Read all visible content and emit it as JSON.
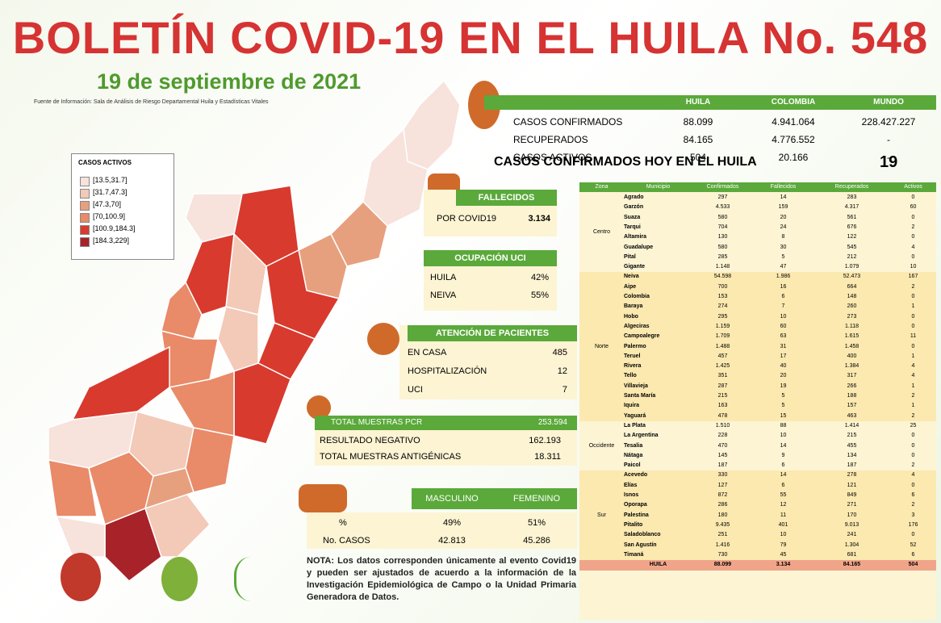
{
  "header": {
    "title": "BOLETÍN COVID-19 EN EL HUILA No. 548",
    "date": "19 de septiembre de 2021",
    "source": "Fuente de Información: Sala de Análisis de Riesgo Departamental Huila y Estadísticas Vitales"
  },
  "legend": {
    "title": "CASOS ACTIVOS",
    "items": [
      "[13.5,31.7]",
      "[31.7,47.3]",
      "[47.3,70]",
      "[70,100.9]",
      "[100.9,184.3]",
      "[184.3,229]"
    ]
  },
  "summary": {
    "columns": [
      "HUILA",
      "COLOMBIA",
      "MUNDO"
    ],
    "rows": [
      [
        "CASOS CONFIRMADOS",
        "88.099",
        "4.941.064",
        "228.427.227"
      ],
      [
        "RECUPERADOS",
        "84.165",
        "4.776.552",
        "-"
      ],
      [
        "CASOS ACTIVOS",
        "504",
        "20.166",
        "-"
      ]
    ],
    "today_label": "CASOS CONFIRMADOS HOY EN EL HUILA",
    "today_value": "19"
  },
  "deaths": {
    "title": "FALLECIDOS",
    "label": "POR COVID19",
    "value": "3.134"
  },
  "icu": {
    "title": "OCUPACIÓN UCI",
    "rows": [
      [
        "HUILA",
        "42%"
      ],
      [
        "NEIVA",
        "55%"
      ]
    ]
  },
  "care": {
    "title": "ATENCIÓN DE PACIENTES",
    "rows": [
      [
        "EN CASA",
        "485"
      ],
      [
        "HOSPITALIZACIÓN",
        "12"
      ],
      [
        "UCI",
        "7"
      ]
    ]
  },
  "samples": {
    "title": "TOTAL MUESTRAS PCR",
    "total": "253.594",
    "rows": [
      [
        "RESULTADO NEGATIVO",
        "162.193"
      ],
      [
        "TOTAL MUESTRAS ANTIGÉNICAS",
        "18.311"
      ]
    ]
  },
  "gender": {
    "columns": [
      "MASCULINO",
      "FEMENINO"
    ],
    "rows": [
      [
        "%",
        "49%",
        "51%"
      ],
      [
        "No. CASOS",
        "42.813",
        "45.286"
      ]
    ]
  },
  "note": "NOTA: Los datos corresponden únicamente al evento Covid19 y pueden ser ajustados de acuerdo a la información de la Investigación Epidemiológica de Campo o la Unidad Primaria Generadora de Datos.",
  "table": {
    "headers": [
      "Zona",
      "Municipio",
      "Confirmados",
      "Fallecidos",
      "Recuperados",
      "Activos"
    ],
    "zones": [
      {
        "name": "Centro",
        "rows": [
          [
            "Agrado",
            "297",
            "14",
            "283",
            "0"
          ],
          [
            "Garzón",
            "4.533",
            "159",
            "4.317",
            "60"
          ],
          [
            "Suaza",
            "580",
            "20",
            "561",
            "0"
          ],
          [
            "Tarqui",
            "704",
            "24",
            "676",
            "2"
          ],
          [
            "Altamira",
            "130",
            "8",
            "122",
            "0"
          ],
          [
            "Guadalupe",
            "580",
            "30",
            "545",
            "4"
          ],
          [
            "Pital",
            "285",
            "5",
            "212",
            "0"
          ],
          [
            "Gigante",
            "1.148",
            "47",
            "1.079",
            "10"
          ]
        ]
      },
      {
        "name": "Norte",
        "rows": [
          [
            "Neiva",
            "54.598",
            "1.986",
            "52.473",
            "167"
          ],
          [
            "Aipe",
            "700",
            "16",
            "664",
            "2"
          ],
          [
            "Colombia",
            "153",
            "6",
            "148",
            "0"
          ],
          [
            "Baraya",
            "274",
            "7",
            "260",
            "1"
          ],
          [
            "Hobo",
            "295",
            "10",
            "273",
            "0"
          ],
          [
            "Algeciras",
            "1.159",
            "60",
            "1.118",
            "0"
          ],
          [
            "Campoalegre",
            "1.709",
            "63",
            "1.615",
            "11"
          ],
          [
            "Palermo",
            "1.488",
            "31",
            "1.458",
            "0"
          ],
          [
            "Teruel",
            "457",
            "17",
            "400",
            "1"
          ],
          [
            "Rivera",
            "1.425",
            "40",
            "1.384",
            "4"
          ],
          [
            "Tello",
            "351",
            "20",
            "317",
            "4"
          ],
          [
            "Villavieja",
            "287",
            "19",
            "266",
            "1"
          ],
          [
            "Santa María",
            "215",
            "5",
            "188",
            "2"
          ],
          [
            "Iquira",
            "163",
            "5",
            "157",
            "1"
          ],
          [
            "Yaguará",
            "478",
            "15",
            "463",
            "2"
          ]
        ]
      },
      {
        "name": "Occidente",
        "rows": [
          [
            "La Plata",
            "1.510",
            "88",
            "1.414",
            "25"
          ],
          [
            "La Argentina",
            "228",
            "10",
            "215",
            "0"
          ],
          [
            "Tesalia",
            "470",
            "14",
            "455",
            "0"
          ],
          [
            "Nátaga",
            "145",
            "9",
            "134",
            "0"
          ],
          [
            "Paicol",
            "187",
            "6",
            "187",
            "2"
          ]
        ]
      },
      {
        "name": "Sur",
        "rows": [
          [
            "Acevedo",
            "330",
            "14",
            "278",
            "4"
          ],
          [
            "Elías",
            "127",
            "6",
            "121",
            "0"
          ],
          [
            "Isnos",
            "872",
            "55",
            "849",
            "6"
          ],
          [
            "Oporapa",
            "286",
            "12",
            "271",
            "2"
          ],
          [
            "Palestina",
            "180",
            "11",
            "170",
            "3"
          ],
          [
            "Pitalito",
            "9.435",
            "401",
            "9.013",
            "176"
          ],
          [
            "Saladoblanco",
            "251",
            "10",
            "241",
            "0"
          ],
          [
            "San Agustín",
            "1.416",
            "79",
            "1.304",
            "52"
          ],
          [
            "Timaná",
            "730",
            "45",
            "681",
            "6"
          ]
        ]
      }
    ],
    "total": [
      "HUILA",
      "88.099",
      "3.134",
      "84.165",
      "504"
    ]
  }
}
